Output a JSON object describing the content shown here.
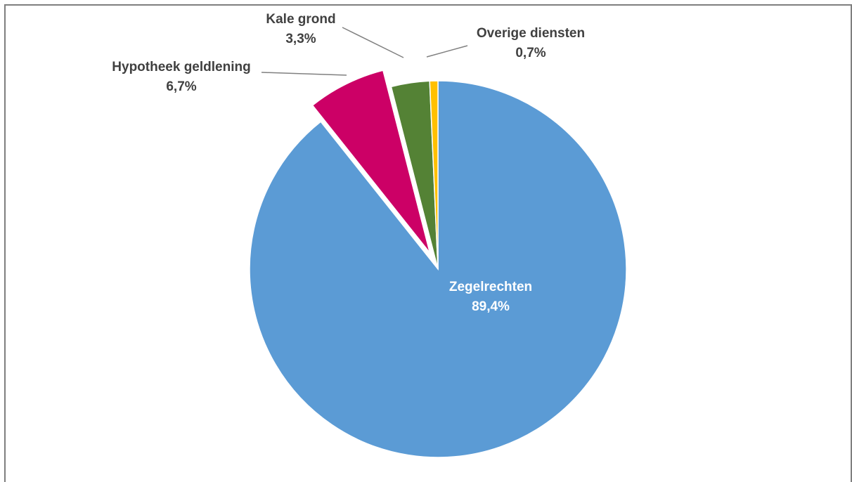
{
  "chart_data": {
    "type": "pie",
    "title": "",
    "slices": [
      {
        "label": "Zegelrechten",
        "value": 89.4,
        "value_label": "89,4%",
        "color": "#5b9bd5"
      },
      {
        "label": "Hypotheek geldlening",
        "value": 6.7,
        "value_label": "6,7%",
        "color": "#cc0066"
      },
      {
        "label": "Kale grond",
        "value": 3.3,
        "value_label": "3,3%",
        "color": "#548235"
      },
      {
        "label": "Overige diensten",
        "value": 0.7,
        "value_label": "0,7%",
        "color": "#ffc000"
      }
    ],
    "exploded_slice": "Hypotheek geldlening",
    "legend": "none",
    "direction": "clockwise-from-top"
  }
}
